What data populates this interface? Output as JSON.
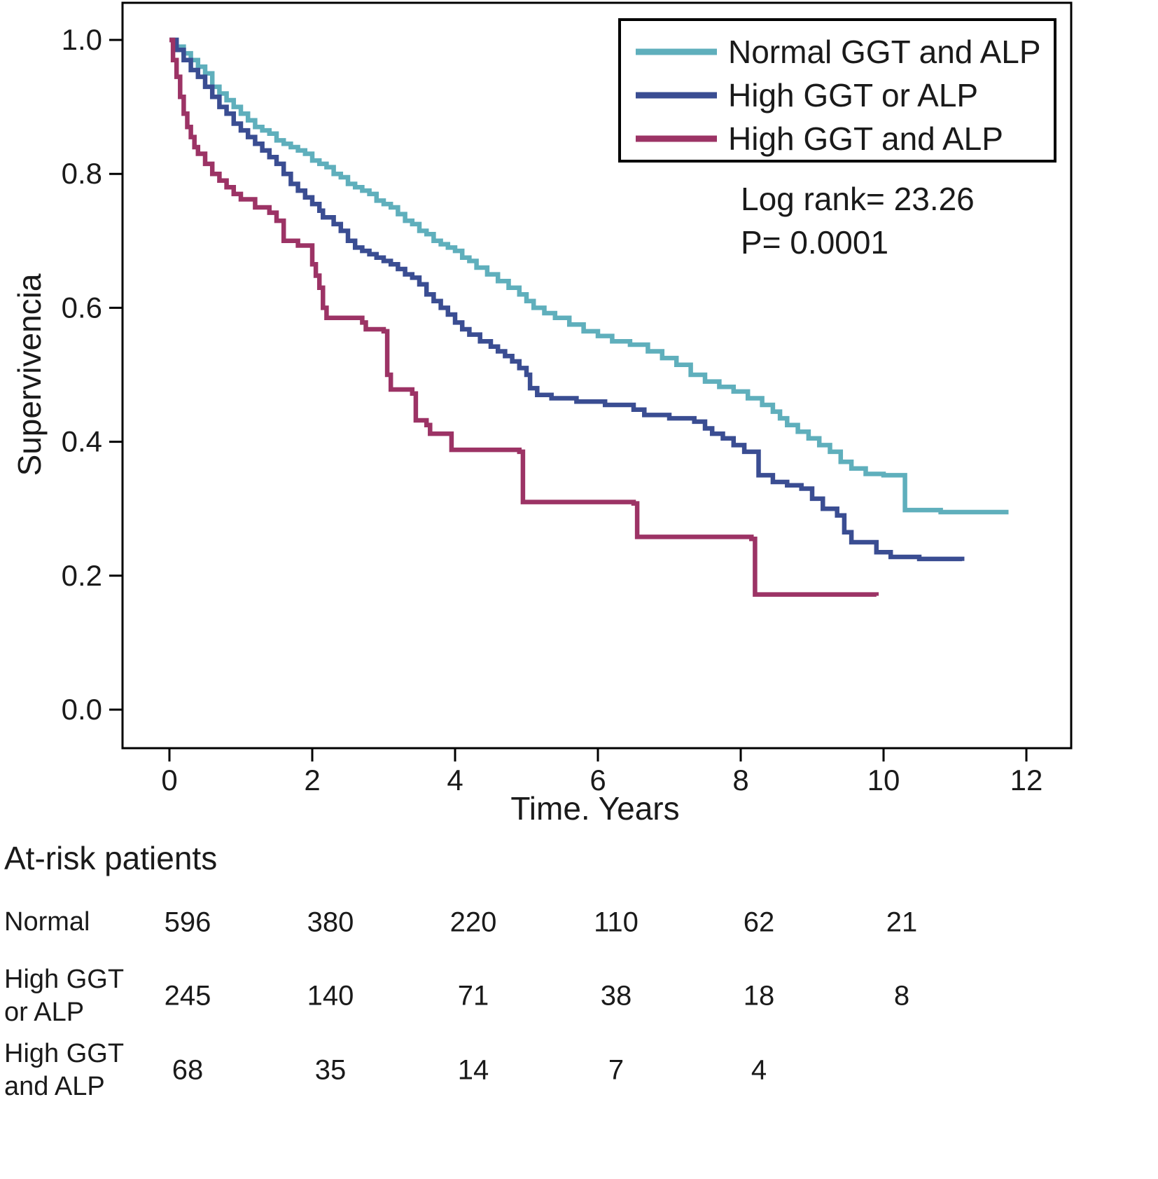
{
  "chart_data": {
    "type": "line",
    "subtype": "kaplan-meier-step",
    "title": "",
    "xlabel": "Time. Years",
    "ylabel": "Supervivencia",
    "xlim": [
      -0.65,
      12.6
    ],
    "ylim": [
      -0.06,
      1.05
    ],
    "xticks": [
      0,
      2,
      4,
      6,
      8,
      10,
      12
    ],
    "yticks": [
      0.0,
      0.2,
      0.4,
      0.6,
      0.8,
      1.0
    ],
    "legend_position": "upper right",
    "grid": false,
    "annotations": [
      "Log rank= 23.26",
      "P= 0.0001"
    ],
    "series": [
      {
        "id": "normal-ggt-and-alp",
        "name": "Normal GGT and ALP",
        "color": "#5FAFBC",
        "points": [
          [
            0,
            1.0
          ],
          [
            0.1,
            0.99
          ],
          [
            0.2,
            0.98
          ],
          [
            0.3,
            0.97
          ],
          [
            0.4,
            0.96
          ],
          [
            0.5,
            0.95
          ],
          [
            0.6,
            0.93
          ],
          [
            0.7,
            0.92
          ],
          [
            0.8,
            0.91
          ],
          [
            0.9,
            0.9
          ],
          [
            1.0,
            0.89
          ],
          [
            1.1,
            0.88
          ],
          [
            1.2,
            0.87
          ],
          [
            1.3,
            0.865
          ],
          [
            1.4,
            0.86
          ],
          [
            1.5,
            0.85
          ],
          [
            1.6,
            0.845
          ],
          [
            1.7,
            0.84
          ],
          [
            1.8,
            0.835
          ],
          [
            1.9,
            0.83
          ],
          [
            2.0,
            0.82
          ],
          [
            2.1,
            0.815
          ],
          [
            2.2,
            0.81
          ],
          [
            2.3,
            0.8
          ],
          [
            2.4,
            0.795
          ],
          [
            2.5,
            0.785
          ],
          [
            2.6,
            0.78
          ],
          [
            2.7,
            0.775
          ],
          [
            2.8,
            0.77
          ],
          [
            2.9,
            0.76
          ],
          [
            3.0,
            0.755
          ],
          [
            3.1,
            0.75
          ],
          [
            3.2,
            0.74
          ],
          [
            3.3,
            0.73
          ],
          [
            3.4,
            0.725
          ],
          [
            3.5,
            0.715
          ],
          [
            3.6,
            0.71
          ],
          [
            3.7,
            0.7
          ],
          [
            3.8,
            0.695
          ],
          [
            3.9,
            0.69
          ],
          [
            4.0,
            0.685
          ],
          [
            4.1,
            0.675
          ],
          [
            4.2,
            0.67
          ],
          [
            4.3,
            0.66
          ],
          [
            4.45,
            0.65
          ],
          [
            4.6,
            0.64
          ],
          [
            4.75,
            0.63
          ],
          [
            4.9,
            0.62
          ],
          [
            5.0,
            0.61
          ],
          [
            5.1,
            0.6
          ],
          [
            5.25,
            0.592
          ],
          [
            5.4,
            0.585
          ],
          [
            5.6,
            0.575
          ],
          [
            5.8,
            0.565
          ],
          [
            6.0,
            0.558
          ],
          [
            6.2,
            0.55
          ],
          [
            6.45,
            0.545
          ],
          [
            6.7,
            0.535
          ],
          [
            6.9,
            0.525
          ],
          [
            7.1,
            0.515
          ],
          [
            7.3,
            0.5
          ],
          [
            7.5,
            0.49
          ],
          [
            7.7,
            0.482
          ],
          [
            7.9,
            0.475
          ],
          [
            8.1,
            0.465
          ],
          [
            8.3,
            0.455
          ],
          [
            8.45,
            0.445
          ],
          [
            8.55,
            0.435
          ],
          [
            8.65,
            0.425
          ],
          [
            8.8,
            0.415
          ],
          [
            8.95,
            0.405
          ],
          [
            9.1,
            0.395
          ],
          [
            9.25,
            0.385
          ],
          [
            9.4,
            0.37
          ],
          [
            9.55,
            0.36
          ],
          [
            9.75,
            0.352
          ],
          [
            10.0,
            0.35
          ],
          [
            10.3,
            0.298
          ],
          [
            10.8,
            0.295
          ],
          [
            11.75,
            0.295
          ]
        ]
      },
      {
        "id": "high-ggt-or-alp",
        "name": "High GGT or ALP",
        "color": "#3A4D92",
        "points": [
          [
            0,
            1.0
          ],
          [
            0.1,
            0.985
          ],
          [
            0.2,
            0.97
          ],
          [
            0.3,
            0.955
          ],
          [
            0.4,
            0.945
          ],
          [
            0.5,
            0.93
          ],
          [
            0.6,
            0.915
          ],
          [
            0.7,
            0.9
          ],
          [
            0.8,
            0.89
          ],
          [
            0.9,
            0.875
          ],
          [
            1.0,
            0.865
          ],
          [
            1.1,
            0.855
          ],
          [
            1.2,
            0.845
          ],
          [
            1.3,
            0.835
          ],
          [
            1.4,
            0.825
          ],
          [
            1.5,
            0.815
          ],
          [
            1.6,
            0.8
          ],
          [
            1.7,
            0.785
          ],
          [
            1.8,
            0.775
          ],
          [
            1.9,
            0.765
          ],
          [
            2.0,
            0.755
          ],
          [
            2.1,
            0.745
          ],
          [
            2.15,
            0.735
          ],
          [
            2.3,
            0.725
          ],
          [
            2.4,
            0.715
          ],
          [
            2.5,
            0.7
          ],
          [
            2.6,
            0.69
          ],
          [
            2.7,
            0.685
          ],
          [
            2.8,
            0.68
          ],
          [
            2.9,
            0.675
          ],
          [
            3.0,
            0.67
          ],
          [
            3.1,
            0.665
          ],
          [
            3.2,
            0.658
          ],
          [
            3.3,
            0.65
          ],
          [
            3.4,
            0.645
          ],
          [
            3.5,
            0.635
          ],
          [
            3.6,
            0.62
          ],
          [
            3.7,
            0.61
          ],
          [
            3.8,
            0.6
          ],
          [
            3.9,
            0.59
          ],
          [
            4.0,
            0.578
          ],
          [
            4.1,
            0.568
          ],
          [
            4.2,
            0.56
          ],
          [
            4.35,
            0.55
          ],
          [
            4.5,
            0.542
          ],
          [
            4.6,
            0.535
          ],
          [
            4.7,
            0.528
          ],
          [
            4.8,
            0.52
          ],
          [
            4.9,
            0.51
          ],
          [
            5.0,
            0.5
          ],
          [
            5.05,
            0.48
          ],
          [
            5.15,
            0.47
          ],
          [
            5.35,
            0.465
          ],
          [
            5.7,
            0.46
          ],
          [
            6.1,
            0.455
          ],
          [
            6.5,
            0.448
          ],
          [
            6.65,
            0.44
          ],
          [
            7.0,
            0.435
          ],
          [
            7.35,
            0.43
          ],
          [
            7.5,
            0.42
          ],
          [
            7.6,
            0.412
          ],
          [
            7.75,
            0.405
          ],
          [
            7.9,
            0.395
          ],
          [
            8.05,
            0.385
          ],
          [
            8.25,
            0.35
          ],
          [
            8.45,
            0.34
          ],
          [
            8.65,
            0.335
          ],
          [
            8.85,
            0.33
          ],
          [
            9.0,
            0.315
          ],
          [
            9.15,
            0.3
          ],
          [
            9.35,
            0.29
          ],
          [
            9.45,
            0.265
          ],
          [
            9.55,
            0.25
          ],
          [
            9.9,
            0.235
          ],
          [
            10.1,
            0.228
          ],
          [
            10.5,
            0.225
          ],
          [
            11.1,
            0.222
          ]
        ]
      },
      {
        "id": "high-ggt-and-alp",
        "name": "High GGT and ALP",
        "color": "#9C3365",
        "points": [
          [
            0,
            1.0
          ],
          [
            0.05,
            0.97
          ],
          [
            0.1,
            0.945
          ],
          [
            0.15,
            0.915
          ],
          [
            0.2,
            0.89
          ],
          [
            0.25,
            0.87
          ],
          [
            0.3,
            0.855
          ],
          [
            0.35,
            0.84
          ],
          [
            0.4,
            0.83
          ],
          [
            0.5,
            0.815
          ],
          [
            0.6,
            0.8
          ],
          [
            0.7,
            0.79
          ],
          [
            0.8,
            0.78
          ],
          [
            0.9,
            0.77
          ],
          [
            1.0,
            0.762
          ],
          [
            1.2,
            0.75
          ],
          [
            1.4,
            0.742
          ],
          [
            1.5,
            0.73
          ],
          [
            1.6,
            0.7
          ],
          [
            1.8,
            0.693
          ],
          [
            2.0,
            0.665
          ],
          [
            2.05,
            0.648
          ],
          [
            2.1,
            0.63
          ],
          [
            2.15,
            0.6
          ],
          [
            2.2,
            0.585
          ],
          [
            2.7,
            0.578
          ],
          [
            2.75,
            0.568
          ],
          [
            3.0,
            0.565
          ],
          [
            3.05,
            0.5
          ],
          [
            3.1,
            0.478
          ],
          [
            3.4,
            0.472
          ],
          [
            3.45,
            0.432
          ],
          [
            3.6,
            0.425
          ],
          [
            3.65,
            0.412
          ],
          [
            3.95,
            0.388
          ],
          [
            4.9,
            0.385
          ],
          [
            4.95,
            0.31
          ],
          [
            6.5,
            0.308
          ],
          [
            6.55,
            0.258
          ],
          [
            8.15,
            0.255
          ],
          [
            8.2,
            0.172
          ],
          [
            9.9,
            0.17
          ]
        ]
      }
    ]
  },
  "at_risk": {
    "title": "At-risk patients",
    "rows": [
      {
        "id": "normal",
        "label_lines": [
          "Normal"
        ],
        "counts": [
          "596",
          "380",
          "220",
          "110",
          "62",
          "21"
        ]
      },
      {
        "id": "high-ggt-or-alp",
        "label_lines": [
          "High GGT",
          "or ALP"
        ],
        "counts": [
          "245",
          "140",
          "71",
          "38",
          "18",
          "8"
        ]
      },
      {
        "id": "high-ggt-and-alp",
        "label_lines": [
          "High GGT",
          "and ALP"
        ],
        "counts": [
          "68",
          "35",
          "14",
          "7",
          "4"
        ]
      }
    ]
  }
}
